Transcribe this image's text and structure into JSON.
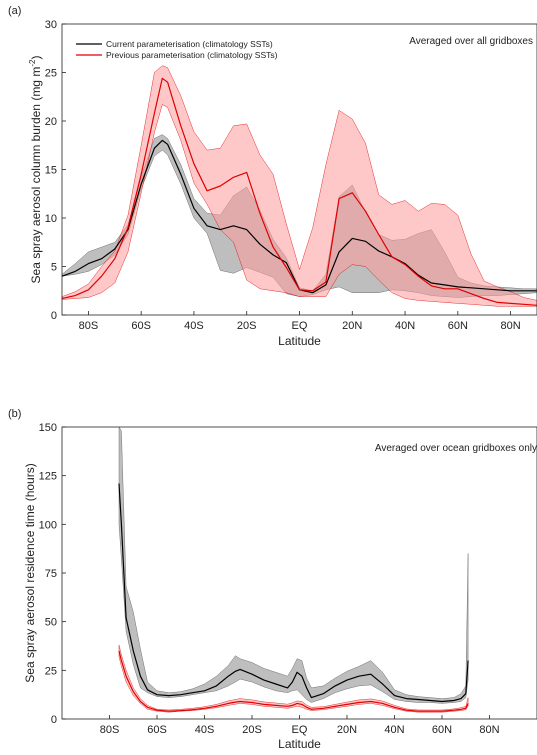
{
  "colors": {
    "current": "#000000",
    "current_band": "#a8a8a8",
    "previous": "#e00000",
    "previous_band": "#ff9a9a"
  },
  "chart_data": [
    {
      "panel_label": "(a)",
      "type": "line",
      "annotation": "Averaged over all gridboxes",
      "xlabel": "Latitude",
      "ylabel": "Sea spray aerosol column burden (mg m",
      "ylabel_sup": "-2",
      "ylabel_close": ")",
      "xlim": [
        -90,
        90
      ],
      "ylim": [
        0,
        30
      ],
      "xticks": [
        -80,
        -60,
        -40,
        -20,
        0,
        20,
        40,
        60,
        80
      ],
      "xtick_labels": [
        "80S",
        "60S",
        "40S",
        "20S",
        "EQ",
        "20N",
        "40N",
        "60N",
        "80N"
      ],
      "yticks": [
        0,
        5,
        10,
        15,
        20,
        25,
        30
      ],
      "ytick_labels": [
        "0",
        "5",
        "10",
        "15",
        "20",
        "25",
        "30"
      ],
      "legend_position": "top-left",
      "series": [
        {
          "name": "Current parameterisation (climatology SSTs)",
          "key": "current",
          "x": [
            -90,
            -85,
            -80,
            -75,
            -70,
            -65,
            -60,
            -55,
            -52,
            -50,
            -45,
            -40,
            -35,
            -30,
            -25,
            -20,
            -15,
            -10,
            -5,
            0,
            5,
            10,
            15,
            20,
            25,
            30,
            35,
            40,
            45,
            50,
            55,
            60,
            65,
            70,
            75,
            80,
            85,
            90
          ],
          "mean": [
            4.0,
            4.5,
            5.3,
            5.8,
            6.8,
            8.8,
            13.5,
            17.2,
            18.0,
            17.6,
            14.5,
            11.0,
            9.2,
            8.8,
            9.2,
            8.8,
            7.3,
            6.2,
            5.4,
            2.6,
            2.3,
            3.1,
            6.5,
            7.9,
            7.6,
            6.6,
            6.0,
            5.3,
            4.1,
            3.3,
            3.1,
            2.9,
            2.8,
            2.7,
            2.6,
            2.5,
            2.5,
            2.5
          ],
          "lower": [
            4.0,
            4.2,
            4.5,
            5.2,
            6.2,
            8.3,
            13.0,
            16.4,
            17.0,
            16.5,
            13.5,
            10.0,
            8.4,
            4.6,
            4.3,
            4.9,
            4.4,
            3.9,
            2.2,
            1.9,
            2.1,
            2.6,
            2.9,
            2.3,
            2.3,
            2.3,
            2.6,
            2.5,
            2.3,
            2.0,
            1.9,
            1.8,
            1.9,
            2.0,
            2.0,
            2.1,
            2.2,
            2.3
          ],
          "upper": [
            4.2,
            5.3,
            6.5,
            7.0,
            7.5,
            9.3,
            14.3,
            18.2,
            18.6,
            18.2,
            15.5,
            12.0,
            10.5,
            10.3,
            12.3,
            13.2,
            10.8,
            7.8,
            5.9,
            2.8,
            2.5,
            4.2,
            12.2,
            13.4,
            10.6,
            8.3,
            7.7,
            7.8,
            8.4,
            8.8,
            6.5,
            3.9,
            3.3,
            3.0,
            2.9,
            2.8,
            2.7,
            2.7
          ]
        },
        {
          "name": "Previous parameterisation (climatology SSTs)",
          "key": "previous",
          "x": [
            -90,
            -85,
            -80,
            -75,
            -70,
            -65,
            -60,
            -55,
            -52,
            -50,
            -45,
            -40,
            -35,
            -30,
            -25,
            -20,
            -15,
            -10,
            -5,
            0,
            5,
            10,
            15,
            20,
            25,
            30,
            35,
            40,
            45,
            50,
            55,
            60,
            65,
            70,
            75,
            80,
            85,
            90
          ],
          "mean": [
            1.7,
            2.0,
            2.6,
            4.0,
            5.8,
            9.0,
            14.5,
            20.8,
            24.4,
            24.0,
            19.5,
            15.6,
            12.8,
            13.3,
            14.2,
            14.7,
            10.5,
            7.0,
            4.9,
            2.6,
            2.5,
            3.4,
            12.0,
            12.6,
            10.7,
            8.3,
            6.0,
            5.2,
            4.0,
            3.0,
            2.7,
            2.7,
            2.2,
            1.7,
            1.3,
            1.2,
            1.1,
            1.0
          ],
          "lower": [
            1.6,
            1.7,
            1.8,
            2.3,
            3.3,
            6.5,
            12.6,
            18.8,
            21.7,
            21.4,
            18.0,
            13.6,
            11.4,
            8.8,
            7.5,
            3.6,
            2.7,
            2.5,
            2.3,
            1.9,
            1.9,
            1.9,
            4.2,
            5.2,
            5.0,
            3.6,
            2.3,
            1.7,
            1.5,
            1.4,
            1.3,
            1.2,
            1.1,
            1.0,
            0.9,
            0.9,
            0.9,
            0.9
          ],
          "upper": [
            1.9,
            2.4,
            3.2,
            5.0,
            6.6,
            10.3,
            17.5,
            25.0,
            25.7,
            25.5,
            22.6,
            18.9,
            17.0,
            17.2,
            19.5,
            19.7,
            16.5,
            14.5,
            9.4,
            4.7,
            9.0,
            15.5,
            21.1,
            20.2,
            17.7,
            12.4,
            11.4,
            11.8,
            10.7,
            11.5,
            11.4,
            10.3,
            6.3,
            3.5,
            2.9,
            2.4,
            1.8,
            1.5
          ]
        }
      ]
    },
    {
      "panel_label": "(b)",
      "type": "line",
      "annotation": "Averaged over ocean gridboxes only",
      "xlabel": "Latitude",
      "ylabel": "Sea spray aerosol residence time (hours)",
      "xlim": [
        -100,
        100
      ],
      "ylim": [
        0,
        150
      ],
      "xticks": [
        -80,
        -60,
        -40,
        -20,
        0,
        20,
        40,
        60,
        80
      ],
      "xtick_labels": [
        "80S",
        "60S",
        "40S",
        "20S",
        "EQ",
        "20N",
        "40N",
        "60N",
        "80N"
      ],
      "yticks": [
        0,
        25,
        50,
        75,
        100,
        125,
        150
      ],
      "ytick_labels": [
        "0",
        "25",
        "50",
        "75",
        "100",
        "125",
        "150"
      ],
      "series": [
        {
          "key": "current",
          "x": [
            -76,
            -75,
            -73,
            -70,
            -67,
            -64,
            -60,
            -55,
            -50,
            -45,
            -40,
            -35,
            -30,
            -27,
            -25,
            -20,
            -15,
            -10,
            -5,
            -3,
            -1,
            1,
            3,
            5,
            10,
            15,
            20,
            25,
            30,
            35,
            40,
            45,
            50,
            55,
            60,
            65,
            68,
            70,
            71
          ],
          "mean": [
            121,
            100,
            52,
            35,
            22,
            15,
            12.5,
            12,
            12.5,
            13.5,
            14.5,
            17,
            22,
            24.5,
            25.5,
            23,
            20,
            18,
            16,
            19,
            24,
            22,
            16,
            11,
            13,
            17,
            20,
            22,
            23,
            18,
            12,
            10.5,
            10,
            9.5,
            9,
            9.5,
            10.5,
            13,
            30
          ],
          "lower": [
            100,
            82,
            45,
            28,
            16,
            13.5,
            11.5,
            11,
            11.5,
            12.5,
            13.5,
            14.5,
            17,
            19,
            20.5,
            19,
            16.5,
            14.5,
            13.5,
            14.5,
            15,
            12.5,
            10,
            8.5,
            10.5,
            13.5,
            15.5,
            17,
            17.5,
            14,
            10,
            9,
            8.5,
            8.5,
            8,
            8.5,
            9,
            11,
            20
          ],
          "upper": [
            150,
            148,
            68,
            55,
            36,
            19,
            14.5,
            13.5,
            14,
            15.5,
            18,
            22,
            27.5,
            32.5,
            31,
            29,
            26,
            24,
            22,
            26,
            31,
            30,
            21,
            16,
            17,
            21,
            24.5,
            27,
            30,
            24,
            15,
            12.5,
            11.5,
            11,
            10.5,
            11,
            13,
            17,
            85
          ]
        },
        {
          "key": "previous",
          "x": [
            -76,
            -75,
            -73,
            -70,
            -67,
            -64,
            -60,
            -55,
            -50,
            -45,
            -40,
            -35,
            -30,
            -27,
            -25,
            -20,
            -15,
            -10,
            -5,
            -3,
            -1,
            1,
            3,
            5,
            10,
            15,
            20,
            25,
            30,
            35,
            40,
            45,
            50,
            55,
            60,
            65,
            68,
            70,
            71
          ],
          "mean": [
            35,
            30,
            22,
            14,
            9,
            6,
            4.5,
            4,
            4.3,
            4.8,
            5.5,
            6.5,
            8,
            8.7,
            9,
            8.5,
            7.5,
            7,
            6.5,
            7,
            8,
            7.5,
            6,
            5,
            5.5,
            6.5,
            7.5,
            8.5,
            9,
            8,
            6,
            4.5,
            4,
            4,
            4,
            4.5,
            5,
            5.5,
            8
          ],
          "lower": [
            32,
            27,
            19,
            12,
            8,
            5,
            4,
            3.5,
            4,
            4.3,
            5,
            5.8,
            7,
            7.6,
            8,
            7.5,
            6.5,
            6,
            5.5,
            6,
            6.5,
            6,
            5,
            4.3,
            4.8,
            5.7,
            6.5,
            7.5,
            8,
            7,
            5.3,
            4,
            3.5,
            3.5,
            3.5,
            4,
            4.3,
            4.8,
            6.5
          ],
          "upper": [
            38,
            33,
            25,
            16,
            10.5,
            7,
            5,
            4.6,
            5,
            5.5,
            6.3,
            7.5,
            9.3,
            10,
            10.5,
            9.8,
            8.8,
            8.2,
            7.6,
            8.3,
            9.3,
            9,
            7.2,
            6,
            6.3,
            7.5,
            8.7,
            9.8,
            10.3,
            9.2,
            7,
            5.2,
            4.6,
            4.6,
            4.6,
            5.2,
            5.8,
            6.5,
            11
          ]
        }
      ]
    }
  ]
}
